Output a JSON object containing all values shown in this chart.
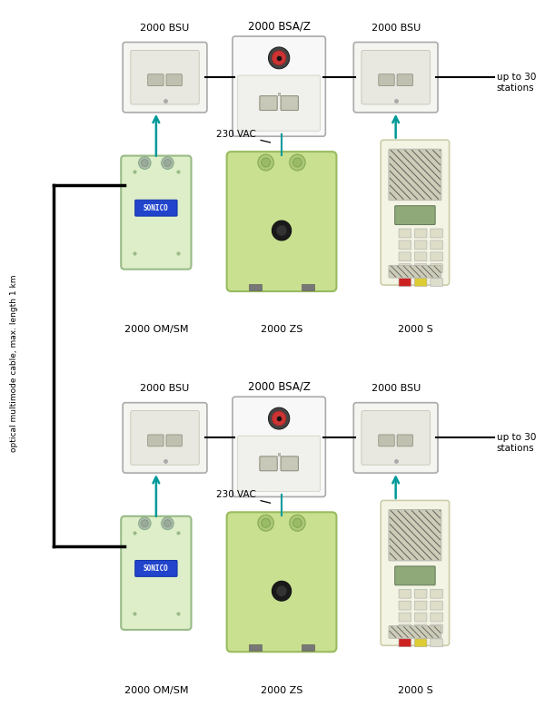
{
  "bg_color": "#ffffff",
  "vertical_label": "optical multimode cable, max. length 1 km",
  "teal": "#009999",
  "black": "#000000",
  "bsu_color": "#f4f4f0",
  "bsaz_color": "#f8f8f8",
  "om_color": "#ddeec8",
  "zs_color": "#c8e090",
  "s_color": "#f4f4e4",
  "groups": [
    {
      "bsu_left_label": "2000 BSU",
      "bsaz_label": "2000 BSA/Z",
      "bsu_right_label": "2000 BSU",
      "om_label": "2000 OM/SM",
      "zs_label": "2000 ZS",
      "s_label": "2000 S",
      "up_to_label": "up to 30\nstations",
      "vac_label": "230 VAC"
    },
    {
      "bsu_left_label": "2000 BSU",
      "bsaz_label": "2000 BSA/Z",
      "bsu_right_label": "2000 BSU",
      "om_label": "2000 OM/SM",
      "zs_label": "2000 ZS",
      "s_label": "2000 S",
      "up_to_label": "up to 30\nstations",
      "vac_label": "230 VAC"
    }
  ]
}
